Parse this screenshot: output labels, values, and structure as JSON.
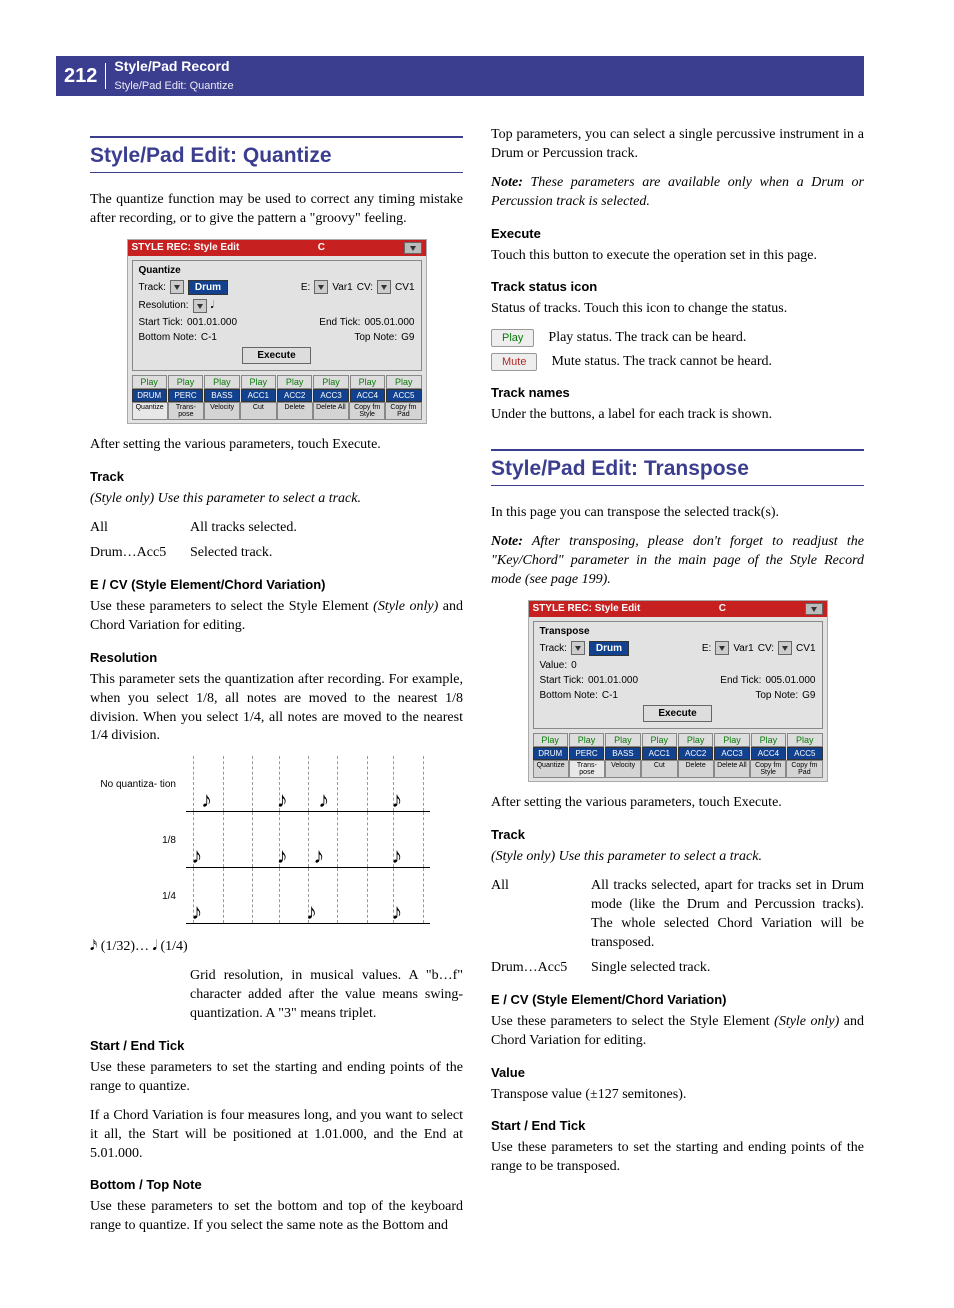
{
  "header": {
    "page_number": "212",
    "title": "Style/Pad Record",
    "subtitle": "Style/Pad Edit: Quantize"
  },
  "left": {
    "section_title": "Style/Pad Edit: Quantize",
    "intro": "The quantize function may be used to correct any timing mistake after recording, or to give the pattern a \"groovy\" feeling.",
    "after_execute": "After setting the various parameters, touch Execute.",
    "track_head": "Track",
    "track_line": "(Style only) Use this parameter to select a track.",
    "defs": {
      "all_term": "All",
      "all_def": "All tracks selected.",
      "drum_term": "Drum…Acc5",
      "drum_def": "Selected track."
    },
    "ecv_head": "E / CV (Style Element/Chord Variation)",
    "ecv_body": "Use these parameters to select the Style Element (Style only) and Chord Variation for editing.",
    "res_head": "Resolution",
    "res_body": "This parameter sets the quantization after recording. For example, when you select 1/8, all notes are moved to the nearest 1/8 division. When you select 1/4, all notes are moved to the nearest 1/4 division.",
    "notation": {
      "labels": {
        "none": "No quantiza-\ntion",
        "eighth": "1/8",
        "quarter": "1/4"
      },
      "none_positions": [
        7,
        38,
        55,
        85
      ],
      "eighth_positions": [
        3,
        38,
        53,
        85
      ],
      "quarter_positions": [
        3,
        50,
        85
      ],
      "tick_positions": [
        3,
        15,
        27,
        38,
        50,
        62,
        74,
        85,
        97
      ]
    },
    "res_range": "𝅘𝅥𝅯 (1/32)… 𝅘𝅥 (1/4)",
    "res_range_def": "Grid resolution, in musical values. A \"b…f\" character added after the value means swing-quantization. A \"3\" means triplet.",
    "start_head": "Start / End Tick",
    "start_body": "Use these parameters to set the starting and ending points of the range to quantize.",
    "start_body2": "If a Chord Variation is four measures long, and you want to select it all, the Start will be positioned at 1.01.000, and the End at 5.01.000.",
    "btn_head": "Bottom / Top Note",
    "btn_body": "Use these parameters to set the bottom and top of the keyboard range to quantize. If you select the same note as the Bottom and"
  },
  "right": {
    "top_cont": "Top parameters, you can select a single percussive instrument in a Drum or Percussion track.",
    "note": "Note: These parameters are available only when a Drum or Percussion track is selected.",
    "exec_head": "Execute",
    "exec_body": "Touch this button to execute the operation set in this page.",
    "status_head": "Track status icon",
    "status_body": "Status of tracks. Touch this icon to change the status.",
    "play_label": "Play",
    "play_def": "Play status. The track can be heard.",
    "mute_label": "Mute",
    "mute_def": "Mute status. The track cannot be heard.",
    "names_head": "Track names",
    "names_body": "Under the buttons, a label for each track is shown.",
    "section_title": "Style/Pad Edit: Transpose",
    "intro": "In this page you can transpose the selected track(s).",
    "note2": "Note: After transposing, please don't forget to readjust the \"Key/Chord\" parameter in the main page of the Style Record mode (see page 199).",
    "after_execute": "After setting the various parameters, touch Execute.",
    "track_head": "Track",
    "track_line": "(Style only) Use this parameter to select a track.",
    "defs": {
      "all_term": "All",
      "all_def": "All tracks selected, apart for tracks set in Drum mode (like the Drum and Percussion tracks). The whole selected Chord Variation will be transposed.",
      "drum_term": "Drum…Acc5",
      "drum_def": "Single selected track."
    },
    "ecv_head": "E / CV (Style Element/Chord Variation)",
    "ecv_body": "Use these parameters to select the Style Element (Style only) and Chord Variation for editing.",
    "val_head": "Value",
    "val_body": "Transpose value (±127 semitones).",
    "start_head": "Start / End Tick",
    "start_body": "Use these parameters to set the starting and ending points of the range to be transposed."
  },
  "ui": {
    "title": "STYLE REC: Style Edit",
    "center": "C",
    "group1": "Quantize",
    "group2": "Transpose",
    "track_label": "Track:",
    "track_value": "Drum",
    "e_label": "E:",
    "e_value": "Var1",
    "cv_label": "CV:",
    "cv_value": "CV1",
    "res_label": "Resolution:",
    "res_value": "𝅘𝅥",
    "value_label": "Value:",
    "value_value": "0",
    "start_label": "Start Tick:",
    "start_value": "001.01.000",
    "end_label": "End Tick:",
    "end_value": "005.01.000",
    "bottom_label": "Bottom Note:",
    "bottom_value": "C-1",
    "top_label": "Top Note:",
    "top_value": "G9",
    "execute": "Execute",
    "tracks": [
      "Play",
      "Play",
      "Play",
      "Play",
      "Play",
      "Play",
      "Play",
      "Play"
    ],
    "track_names": [
      "DRUM",
      "PERC",
      "BASS",
      "ACC1",
      "ACC2",
      "ACC3",
      "ACC4",
      "ACC5"
    ],
    "tabs": [
      "Quantize",
      "Trans-\npose",
      "Velocity",
      "Cut",
      "Delete",
      "Delete\nAll",
      "Copy fm\nStyle",
      "Copy fm\nPad"
    ]
  }
}
